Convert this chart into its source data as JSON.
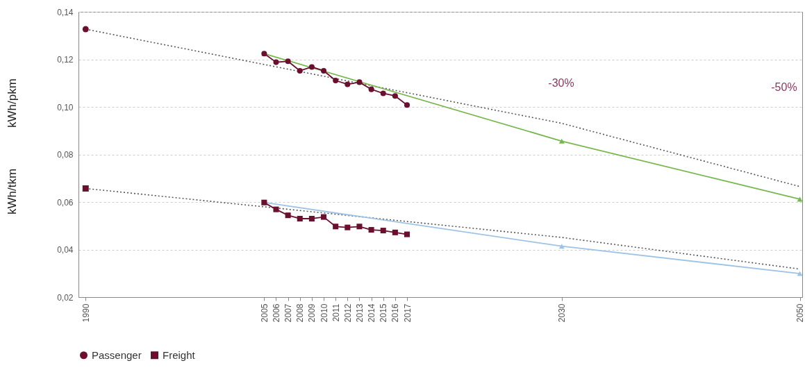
{
  "chart_data": {
    "type": "line",
    "ylabel": "kWh/pkm",
    "annotations": [
      "kWh/tkm",
      "-30%",
      "-50%"
    ],
    "xlim": [
      1989.4,
      2050.2
    ],
    "xticks": [
      1990,
      2005,
      2006,
      2007,
      2008,
      2009,
      2010,
      2011,
      2012,
      2013,
      2014,
      2015,
      2016,
      2017,
      2030,
      2050
    ],
    "ylim": [
      0.02,
      0.14
    ],
    "yticks": [
      {
        "value": 0.02,
        "label": "0,02"
      },
      {
        "value": 0.04,
        "label": "0,04"
      },
      {
        "value": 0.06,
        "label": "0,06"
      },
      {
        "value": 0.08,
        "label": "0,08"
      },
      {
        "value": 0.1,
        "label": "0,10"
      },
      {
        "value": 0.12,
        "label": "0,12"
      },
      {
        "value": 0.14,
        "label": "0,14"
      }
    ],
    "grid": "y",
    "legend": "bottom",
    "series": [
      {
        "color": "#555555",
        "marker": "none",
        "line_style": "dotted",
        "x": [
          1990,
          2030,
          2050
        ],
        "values": [
          0.1327,
          0.0931,
          0.0665
        ]
      },
      {
        "color": "#555555",
        "marker": "none",
        "line_style": "dotted",
        "x": [
          1990,
          2030,
          2050
        ],
        "values": [
          0.0657,
          0.0451,
          0.0318
        ]
      },
      {
        "color": "#77b84e",
        "marker": "triangle",
        "line_style": "solid",
        "x": [
          2005,
          2030,
          2050
        ],
        "values": [
          0.1224,
          0.0856,
          0.0612
        ]
      },
      {
        "color": "#9dc3e6",
        "marker": "triangle",
        "line_style": "solid",
        "x": [
          2005,
          2030,
          2050
        ],
        "values": [
          0.0598,
          0.0414,
          0.0299
        ]
      },
      {
        "type": "scatter",
        "color": "#6b0f2f",
        "marker": "circle",
        "x": [
          1990
        ],
        "values": [
          0.1327
        ]
      },
      {
        "type": "scatter",
        "color": "#6b0f2f",
        "marker": "square",
        "x": [
          1990
        ],
        "values": [
          0.0657
        ]
      },
      {
        "name": "Passenger",
        "color": "#6b0f2f",
        "marker": "circle",
        "line_style": "solid",
        "x": [
          2005,
          2006,
          2007,
          2008,
          2009,
          2010,
          2011,
          2012,
          2013,
          2014,
          2015,
          2016,
          2017
        ],
        "values": [
          0.1224,
          0.1188,
          0.1192,
          0.1152,
          0.1168,
          0.1152,
          0.1111,
          0.1095,
          0.1104,
          0.1074,
          0.1057,
          0.1046,
          0.1008
        ]
      },
      {
        "name": "Freight",
        "color": "#6b0f2f",
        "marker": "square",
        "line_style": "solid",
        "x": [
          2005,
          2006,
          2007,
          2008,
          2009,
          2010,
          2011,
          2012,
          2013,
          2014,
          2015,
          2016,
          2017
        ],
        "values": [
          0.0598,
          0.0569,
          0.0544,
          0.053,
          0.053,
          0.0537,
          0.0497,
          0.0493,
          0.0497,
          0.0483,
          0.048,
          0.0472,
          0.0464
        ]
      }
    ]
  }
}
